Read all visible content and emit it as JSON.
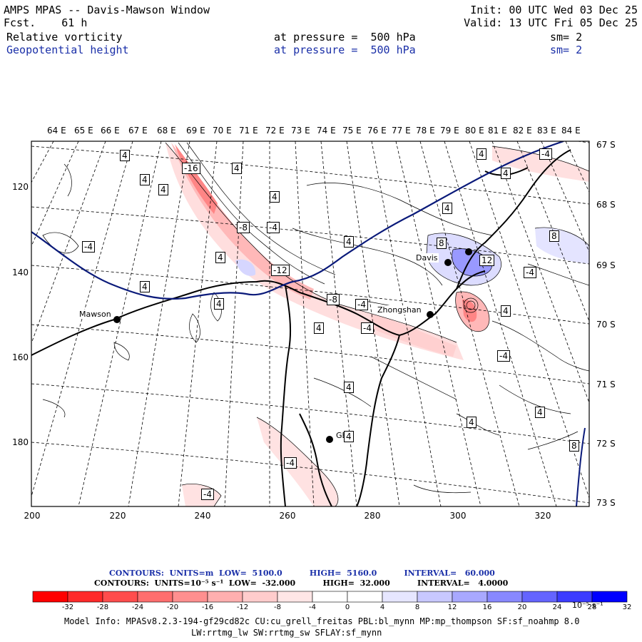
{
  "header": {
    "title": "AMPS MPAS -- Davis-Mawson Window",
    "fcst": "Fcst.    61 h",
    "init": "Init: 00 UTC Wed 03 Dec 25",
    "valid": "Valid: 13 UTC Fri 05 Dec 25",
    "field1": {
      "name": "Relative vorticity",
      "level": "at pressure =  500 hPa",
      "smooth": "sm= 2"
    },
    "field2": {
      "name": "Geopotential height",
      "level": "at pressure =  500 hPa",
      "smooth": "sm= 2"
    }
  },
  "map": {
    "lon_labels": [
      "64 E",
      "65 E",
      "66 E",
      "67 E",
      "68 E",
      "69 E",
      "70 E",
      "71 E",
      "72 E",
      "73 E",
      "74 E",
      "75 E",
      "76 E",
      "77 E",
      "78 E",
      "79 E",
      "80 E",
      "81 E",
      "82 E",
      "83 E",
      "84 E"
    ],
    "lat_labels": [
      "67 S",
      "68 S",
      "69 S",
      "70 S",
      "71 S",
      "72 S",
      "73 S"
    ],
    "y_ticks": [
      "120",
      "140",
      "160",
      "180"
    ],
    "x_ticks": [
      "200",
      "220",
      "240",
      "260",
      "280",
      "300",
      "320"
    ],
    "stations": [
      {
        "name": "Mawson"
      },
      {
        "name": "Davis"
      },
      {
        "name": "Zhongshan"
      },
      {
        "name": "GB"
      }
    ],
    "contour_labels": [
      "4",
      "4",
      "4",
      "-16",
      "4",
      "4",
      "-4",
      "4",
      "4",
      "-8",
      "-4",
      "4",
      "8",
      "12",
      "4",
      "-12",
      "4",
      "-4",
      "8",
      "-8",
      "-4",
      "4",
      "-4",
      "4",
      "-4",
      "4",
      "4",
      "4",
      "4",
      "-4",
      "4",
      "-4",
      "4",
      "-4",
      "8"
    ],
    "colors": {
      "height_line": "#0a1a7a",
      "coast": "#000000"
    }
  },
  "legend": {
    "line1": "CONTOURS:  UNITS=m  LOW=  5100.0          HIGH=  5160.0          INTERVAL=   60.000",
    "line2": "CONTOURS:  UNITS=10⁻⁵ s⁻¹  LOW=  -32.000          HIGH=  32.000          INTERVAL=   4.0000",
    "colorbar_ticks": [
      "-32",
      "-28",
      "-24",
      "-20",
      "-16",
      "-12",
      "-8",
      "-4",
      "0",
      "4",
      "8",
      "12",
      "16",
      "20",
      "24",
      "28",
      "32"
    ],
    "colorbar_unit": "10⁻⁵ s⁻¹",
    "colorbar_colors": [
      "#ff0000",
      "#ff2a2a",
      "#ff4d4d",
      "#ff6e6e",
      "#ff8f8f",
      "#ffafaf",
      "#ffcccc",
      "#ffe6e6",
      "#ffffff",
      "#ffffff",
      "#e6e6ff",
      "#c8c8ff",
      "#a8a8ff",
      "#8888ff",
      "#6464ff",
      "#3c3cff",
      "#0000ff"
    ]
  },
  "footer": {
    "line1": "Model Info: MPASv8.2.3-194-gf29cd82c CU:cu_grell_freitas PBL:bl_mynn MP:mp_thompson SF:sf_noahmp 8.0",
    "line2": "LW:rrtmg_lw SW:rrtmg_sw SFLAY:sf_mynn"
  }
}
